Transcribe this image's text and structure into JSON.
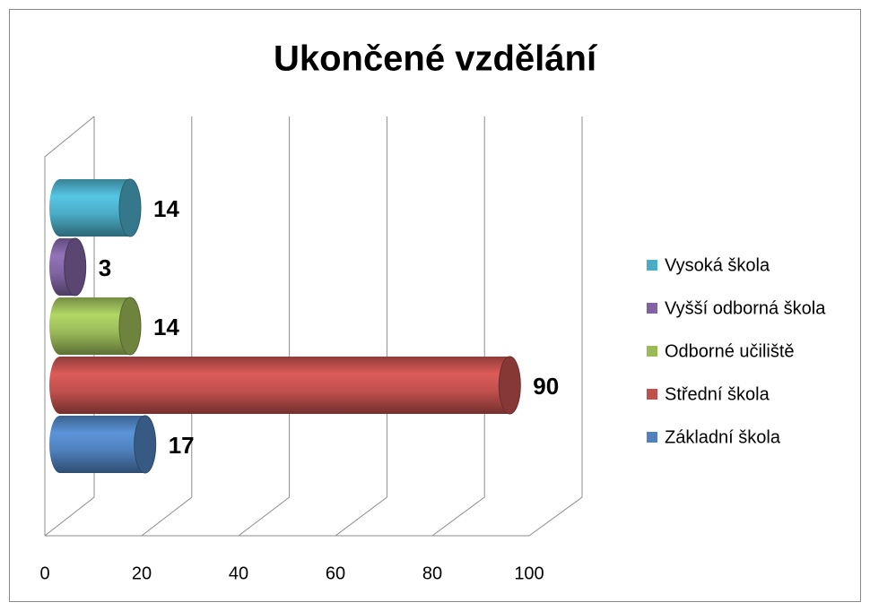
{
  "chart_data": {
    "type": "bar",
    "orientation": "horizontal",
    "title": "Ukončené vzdělání",
    "series": [
      {
        "name": "Základní škola",
        "color": "#4f81bd",
        "values": [
          17
        ]
      },
      {
        "name": "Střední škola",
        "color": "#c0504d",
        "values": [
          90
        ]
      },
      {
        "name": "Odborné učiliště",
        "color": "#9bbb59",
        "values": [
          14
        ]
      },
      {
        "name": "Vyšší odborná škola",
        "color": "#8064a2",
        "values": [
          3
        ]
      },
      {
        "name": "Vysoká škola",
        "color": "#4bacc6",
        "values": [
          14
        ]
      }
    ],
    "xlim": [
      0,
      100
    ],
    "xticks": [
      0,
      20,
      40,
      60,
      80,
      100
    ],
    "grid": true,
    "legend": "right"
  }
}
